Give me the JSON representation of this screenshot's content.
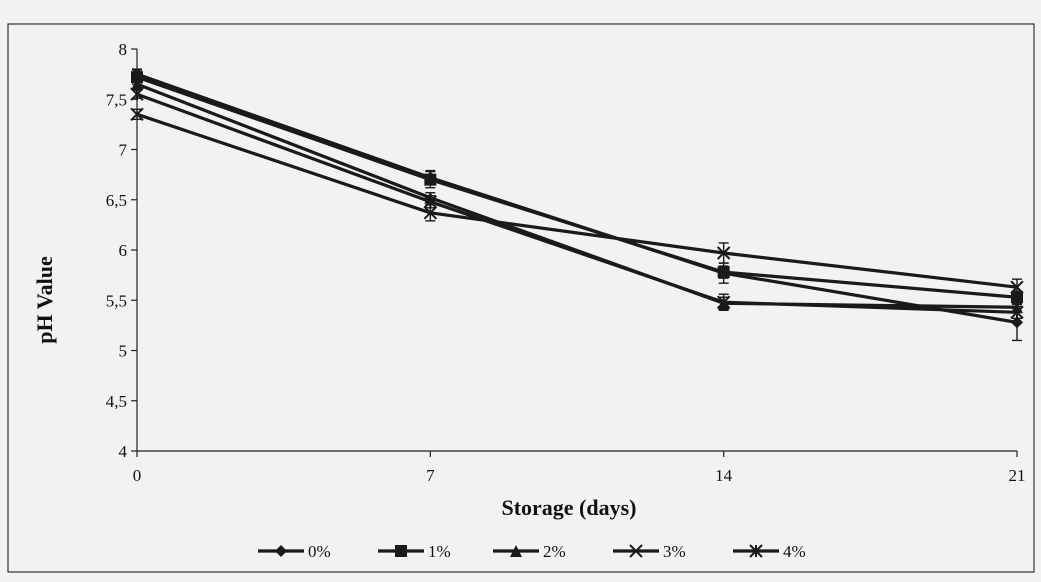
{
  "chart_data": {
    "type": "line",
    "xlabel": "Storage  (days)",
    "ylabel": "pH  Value",
    "x": [
      0,
      7,
      14,
      21
    ],
    "x_tick_labels": [
      "0",
      "7",
      "14",
      "21"
    ],
    "y_tick_labels": [
      "4",
      "4,5",
      "5",
      "5,5",
      "6",
      "6,5",
      "7",
      "7,5",
      "8"
    ],
    "ylim": [
      4,
      8
    ],
    "xlim": [
      0,
      21
    ],
    "grid": false,
    "legend_position": "bottom",
    "series": [
      {
        "name": "0%",
        "marker": "diamond",
        "values": [
          7.75,
          6.72,
          5.77,
          5.28
        ],
        "errors": [
          0.05,
          0.07,
          0.1,
          0.18
        ]
      },
      {
        "name": "1%",
        "marker": "square",
        "values": [
          7.72,
          6.7,
          5.78,
          5.53
        ],
        "errors": [
          0.07,
          0.08,
          0.06,
          0.06
        ]
      },
      {
        "name": "2%",
        "marker": "triangle",
        "values": [
          7.65,
          6.52,
          5.47,
          5.43
        ],
        "errors": [
          0.05,
          0.05,
          0.06,
          0.05
        ]
      },
      {
        "name": "3%",
        "marker": "x",
        "values": [
          7.35,
          6.37,
          5.97,
          5.63
        ],
        "errors": [
          0.05,
          0.08,
          0.1,
          0.08
        ]
      },
      {
        "name": "4%",
        "marker": "star",
        "values": [
          7.55,
          6.48,
          5.48,
          5.38
        ],
        "errors": [
          0.04,
          0.06,
          0.08,
          0.06
        ]
      }
    ],
    "colors": {
      "line": "#1a1a1a",
      "background": "#f2f2f0",
      "frame": "#333333"
    }
  }
}
